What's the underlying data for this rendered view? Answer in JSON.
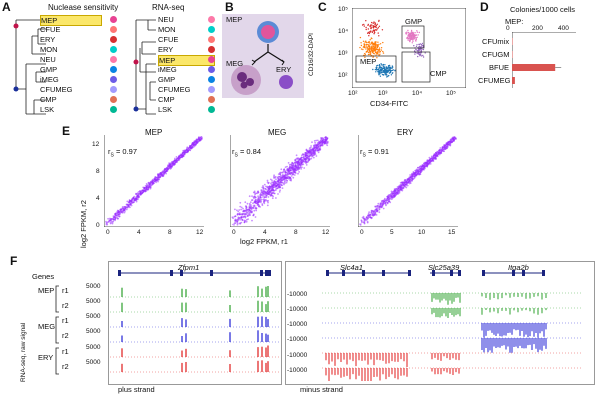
{
  "panels": {
    "A": "A",
    "B": "B",
    "C": "C",
    "D": "D",
    "E": "E",
    "F": "F"
  },
  "panelA": {
    "title_left": "Nuclease sensitivity",
    "title_right": "RNA-seq",
    "left_items": [
      "MEP",
      "CFUE",
      "ERY",
      "MON",
      "NEU",
      "GMP",
      "iMEG",
      "CFUMEG",
      "CMP",
      "LSK"
    ],
    "right_items": [
      "NEU",
      "MON",
      "CFUE",
      "ERY",
      "MEP",
      "iMEG",
      "GMP",
      "CFUMEG",
      "CMP",
      "LSK"
    ]
  },
  "panelB": {
    "mep": "MEP",
    "meg": "MEG",
    "ery": "ERY"
  },
  "panelC": {
    "ylabel": "CD16/32-DAPI",
    "xlabel": "CD34-FITC",
    "gmp": "GMP",
    "mep": "MEP",
    "cmp": "CMP",
    "yticks": [
      "10⁵",
      "10⁴",
      "10³",
      "10²"
    ],
    "xticks": [
      "10²",
      "10³",
      "10⁴",
      "10⁵"
    ]
  },
  "panelD": {
    "title": "Colonies/1000 cells",
    "row_header": "MEP:",
    "ticks": [
      "0",
      "200",
      "400"
    ],
    "rows": [
      {
        "label": "CFUmix",
        "value": 0
      },
      {
        "label": "CFUGM",
        "value": 0
      },
      {
        "label": "BFUE",
        "value": 270
      },
      {
        "label": "CFUMEG",
        "value": 18
      }
    ],
    "bar_color": "#d9534f"
  },
  "panelE": {
    "ylabel": "log2 FPKM, r2",
    "xlabel": "log2 FPKM, r1",
    "point_color": "#9b30ff",
    "plots": [
      {
        "title": "MEP",
        "stat": "r",
        "sub": "S",
        "value": "= 0.97",
        "xticks": [
          "0",
          "4",
          "8",
          "12"
        ],
        "yticks": [
          "0",
          "4",
          "8",
          "12"
        ]
      },
      {
        "title": "MEG",
        "stat": "r",
        "sub": "S",
        "value": "= 0.84",
        "xticks": [
          "0",
          "4",
          "8",
          "12"
        ],
        "yticks": []
      },
      {
        "title": "ERY",
        "stat": "r",
        "sub": "S",
        "value": "= 0.91",
        "xticks": [
          "0",
          "5",
          "10",
          "15"
        ],
        "yticks": []
      }
    ]
  },
  "panelF": {
    "genes_label": "Genes",
    "side_label": "RNA-seq, raw signal",
    "rows": [
      {
        "group": "MEP",
        "rep": "r1"
      },
      {
        "group": "",
        "rep": "r2"
      },
      {
        "group": "MEG",
        "rep": "r1"
      },
      {
        "group": "",
        "rep": "r2"
      },
      {
        "group": "ERY",
        "rep": "r1"
      },
      {
        "group": "",
        "rep": "r2"
      }
    ],
    "left_scale": "5000",
    "right_scale": "-10000",
    "genes_left": [
      "Zfpm1"
    ],
    "genes_right": [
      "Slc4a1",
      "Slc25a39",
      "Itga2b"
    ],
    "plus_strand": "plus strand",
    "minus_strand": "minus strand",
    "colors": {
      "MEP": "#2ca02c",
      "MEG": "#1f1fd6",
      "ERY": "#e01b1b"
    }
  }
}
